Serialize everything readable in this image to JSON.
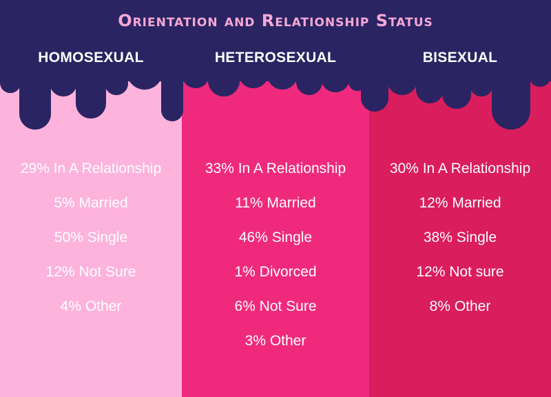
{
  "title": "Orientation and Relationship Status",
  "colors": {
    "navy": "#2a2462",
    "title_pink": "#f7a8d6",
    "homosexual_bg": "#fdb3dc",
    "heterosexual_bg": "#ef2a7c",
    "bisexual_bg": "#da1d5c"
  },
  "columns": [
    {
      "header": "HOMOSEXUAL",
      "items": [
        "29% In A Relationship",
        "5% Married",
        "50% Single",
        "12% Not Sure",
        "4% Other"
      ]
    },
    {
      "header": "HETEROSEXUAL",
      "items": [
        "33% In A Relationship",
        "11% Married",
        "46% Single",
        "1% Divorced",
        "6% Not Sure",
        "3% Other"
      ]
    },
    {
      "header": "BISEXUAL",
      "items": [
        "30% In A Relationship",
        "12% Married",
        "38% Single",
        "12% Not sure",
        "8% Other"
      ]
    }
  ]
}
